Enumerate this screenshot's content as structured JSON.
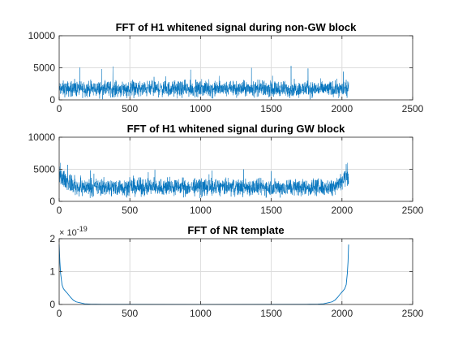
{
  "chart_data": [
    {
      "type": "line",
      "title": "FFT of H1 whitened signal during non-GW block",
      "xlim": [
        0,
        2500
      ],
      "ylim": [
        0,
        10000
      ],
      "xticks": [
        0,
        500,
        1000,
        1500,
        2000,
        2500
      ],
      "yticks": [
        0,
        5000,
        10000
      ],
      "xtick_labels": [
        "0",
        "500",
        "1000",
        "1500",
        "2000",
        "2500"
      ],
      "ytick_labels": [
        "0",
        "5000",
        "10000"
      ],
      "grid": true,
      "color": "#0072BD",
      "series_description": "noise-like magnitude spectrum, N=2048",
      "n_points": 2048,
      "typical_level": 1700,
      "typical_spread": 900,
      "peak_values": [
        [
          300,
          4800
        ],
        [
          380,
          5200
        ],
        [
          930,
          4700
        ],
        [
          1360,
          5000
        ],
        [
          1640,
          5300
        ],
        [
          1760,
          4900
        ],
        [
          2010,
          4400
        ]
      ]
    },
    {
      "type": "line",
      "title": "FFT of H1 whitened signal during GW block",
      "xlim": [
        0,
        2500
      ],
      "ylim": [
        0,
        10000
      ],
      "xticks": [
        0,
        500,
        1000,
        1500,
        2000,
        2500
      ],
      "yticks": [
        0,
        5000,
        10000
      ],
      "xtick_labels": [
        "0",
        "500",
        "1000",
        "1500",
        "2000",
        "2500"
      ],
      "ytick_labels": [
        "0",
        "5000",
        "10000"
      ],
      "grid": true,
      "color": "#0072BD",
      "n_points": 2048,
      "typical_level": 2200,
      "typical_spread": 1000,
      "edge_level": 4000,
      "peak_values": [
        [
          10,
          6000
        ],
        [
          60,
          5700
        ],
        [
          1080,
          4800
        ],
        [
          1500,
          4700
        ],
        [
          2030,
          5800
        ],
        [
          2040,
          6000
        ]
      ]
    },
    {
      "type": "line",
      "title": "FFT of NR template",
      "xlim": [
        0,
        2500
      ],
      "ylim": [
        0,
        2
      ],
      "y_exponent_label": "× 10",
      "y_exponent": "-19",
      "xticks": [
        0,
        500,
        1000,
        1500,
        2000,
        2500
      ],
      "yticks": [
        0,
        1,
        2
      ],
      "xtick_labels": [
        "0",
        "500",
        "1000",
        "1500",
        "2000",
        "2500"
      ],
      "ytick_labels": [
        "0",
        "1",
        "2"
      ],
      "grid": true,
      "color": "#0072BD",
      "n_points": 2048,
      "points": [
        [
          0,
          1.82
        ],
        [
          5,
          1.3
        ],
        [
          10,
          0.95
        ],
        [
          20,
          0.6
        ],
        [
          30,
          0.48
        ],
        [
          45,
          0.4
        ],
        [
          60,
          0.33
        ],
        [
          80,
          0.22
        ],
        [
          100,
          0.13
        ],
        [
          120,
          0.08
        ],
        [
          150,
          0.05
        ],
        [
          180,
          0.02
        ],
        [
          220,
          0.01
        ],
        [
          300,
          0.005
        ],
        [
          1000,
          0.002
        ],
        [
          1750,
          0.005
        ],
        [
          1830,
          0.01
        ],
        [
          1870,
          0.02
        ],
        [
          1900,
          0.05
        ],
        [
          1930,
          0.08
        ],
        [
          1950,
          0.13
        ],
        [
          1970,
          0.22
        ],
        [
          1990,
          0.33
        ],
        [
          2005,
          0.4
        ],
        [
          2020,
          0.48
        ],
        [
          2030,
          0.6
        ],
        [
          2038,
          0.95
        ],
        [
          2043,
          1.3
        ],
        [
          2047,
          1.82
        ]
      ]
    }
  ]
}
